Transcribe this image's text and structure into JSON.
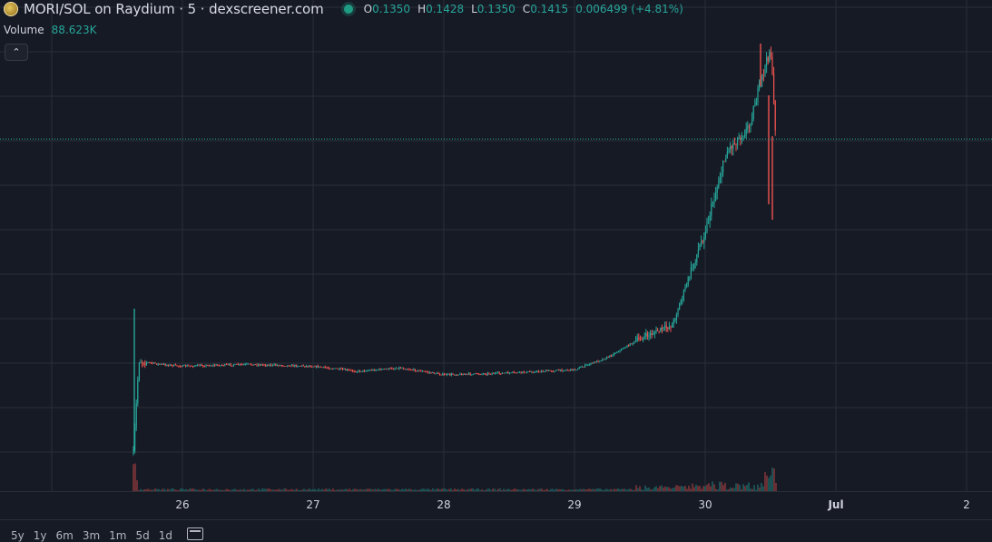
{
  "header": {
    "title": "MORI/SOL on Raydium · 5 · dexscreener.com",
    "ohlc": {
      "o_label": "O",
      "o_value": "0.1350",
      "h_label": "H",
      "h_value": "0.1428",
      "l_label": "L",
      "l_value": "0.1350",
      "c_label": "C",
      "c_value": "0.1415",
      "change": "0.006499 (+4.81%)"
    }
  },
  "volume_legend": {
    "label": "Volume",
    "value": "88.623K"
  },
  "collapse_button": {
    "icon": "chevron-up-icon",
    "glyph": "⌃"
  },
  "x_axis": {
    "ticks": [
      "26",
      "27",
      "28",
      "29",
      "30",
      "Jul",
      "2"
    ]
  },
  "bottom_toolbar": {
    "ranges": [
      "5y",
      "1y",
      "6m",
      "3m",
      "1m",
      "5d",
      "1d"
    ],
    "calendar_icon": "calendar-icon"
  },
  "colors": {
    "background": "#161a25",
    "grid": "#2a2e39",
    "up": "#26a69a",
    "down": "#ef5350",
    "current_price_line": "#26a69a"
  },
  "chart_data": {
    "type": "line",
    "title": "MORI/SOL on Raydium · 5 · dexscreener.com",
    "x": [
      "06-25 15:00",
      "06-25 16:00",
      "06-25 20:00",
      "06-26 00:00",
      "06-26 12:00",
      "06-27 00:00",
      "06-27 08:00",
      "06-27 12:00",
      "06-27 16:00",
      "06-28 00:00",
      "06-28 12:00",
      "06-29 00:00",
      "06-29 06:00",
      "06-29 12:00",
      "06-29 18:00",
      "06-30 00:00",
      "06-30 04:00",
      "06-30 08:00",
      "06-30 10:00",
      "06-30 12:00",
      "06-30 13:00"
    ],
    "series": [
      {
        "values": [
          0.05,
          0.077,
          0.076,
          0.0755,
          0.076,
          0.0755,
          0.074,
          0.0745,
          0.075,
          0.073,
          0.0735,
          0.0745,
          0.078,
          0.0835,
          0.0875,
          0.115,
          0.138,
          0.145,
          0.157,
          0.168,
          0.1415
        ]
      }
    ],
    "volume_series": {
      "note_values": [
        88.623
      ],
      "unit": "K"
    },
    "current_price": 0.1415,
    "grid": true,
    "xlabel": "",
    "ylabel": ""
  }
}
